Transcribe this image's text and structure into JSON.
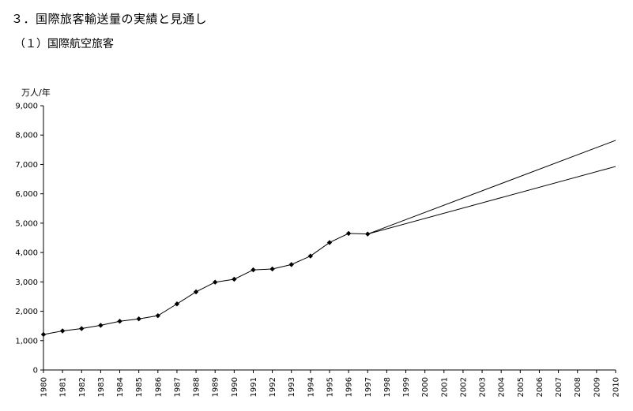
{
  "page": {
    "heading": "３．国際旅客輸送量の実績と見通し",
    "subheading": "（１）国際航空旅客"
  },
  "chart_data": {
    "type": "line",
    "title": "",
    "ylabel": "万人/年",
    "xlabel": "",
    "ylim": [
      0,
      9000
    ],
    "yticks": [
      "0",
      "1,000",
      "2,000",
      "3,000",
      "4,000",
      "5,000",
      "6,000",
      "7,000",
      "8,000",
      "9,000"
    ],
    "categories": [
      "1980",
      "1981",
      "1982",
      "1983",
      "1984",
      "1985",
      "1986",
      "1987",
      "1988",
      "1989",
      "1990",
      "1991",
      "1992",
      "1993",
      "1994",
      "1995",
      "1996",
      "1997",
      "1998",
      "1999",
      "2000",
      "2001",
      "2002",
      "2003",
      "2004",
      "2005",
      "2006",
      "2007",
      "2008",
      "2009",
      "2010"
    ],
    "series": [
      {
        "kind": "actual",
        "x": [
          "1980",
          "1981",
          "1982",
          "1983",
          "1984",
          "1985",
          "1986",
          "1987",
          "1988",
          "1989",
          "1990",
          "1991",
          "1992",
          "1993",
          "1994",
          "1995",
          "1996",
          "1997"
        ],
        "values": [
          1210,
          1330,
          1410,
          1520,
          1660,
          1740,
          1850,
          2250,
          2660,
          2990,
          3090,
          3410,
          3440,
          3590,
          3880,
          4340,
          4650,
          4630
        ],
        "markers": true
      },
      {
        "kind": "forecast-high",
        "x": [
          "1997",
          "2010"
        ],
        "values": [
          4630,
          7820
        ],
        "markers": false
      },
      {
        "kind": "forecast-low",
        "x": [
          "1997",
          "2010"
        ],
        "values": [
          4630,
          6930
        ],
        "markers": false
      }
    ],
    "grid": false,
    "legend": "none"
  }
}
